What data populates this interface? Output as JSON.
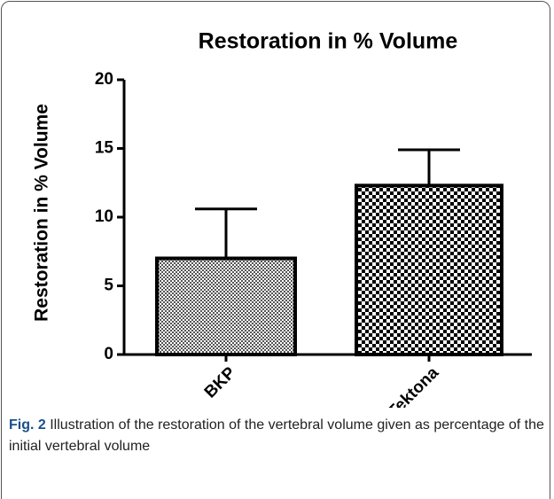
{
  "chart_data": {
    "type": "bar",
    "title": "Restoration in % Volume",
    "y_label": "Restoration in % Volume",
    "categories": [
      "BKP",
      "Tektona"
    ],
    "values": [
      7.0,
      12.3
    ],
    "errors": [
      3.6,
      2.6
    ],
    "ylim": [
      0,
      20
    ],
    "yticks": [
      0,
      5,
      10,
      15,
      20
    ],
    "grid": false
  },
  "caption": {
    "label": "Fig. 2",
    "text": "Illustration of the restoration of the vertebral volume given as percentage of the initial vertebral volume"
  }
}
